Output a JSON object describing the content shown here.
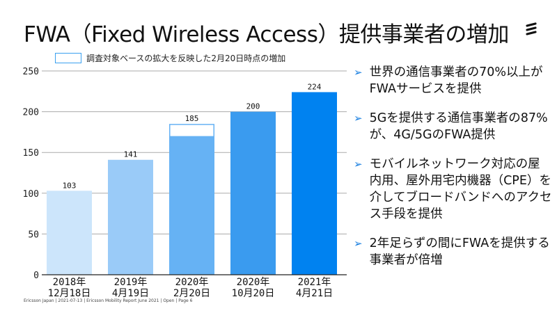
{
  "title": "FWA（Fixed Wireless Access）提供事業者の増加",
  "legend_label": "調査対象ベースの拡大を反映した2月20日時点の増加",
  "bullets": [
    "世界の通信事業者の70%以上がFWAサービスを提供",
    "5Gを提供する通信事業者の87%が、4G/5GのFWA提供",
    "モバイルネットワーク対応の屋内用、屋外用宅内機器（CPE）を介してブロードバンドへのアクセス手段を提供",
    "2年足らずの間にFWAを提供する事業者が倍増"
  ],
  "footer": "Ericsson Japan | 2021-07-13 | Ericsson Mobility Report June 2021 | Open | Page 6",
  "chart_data": {
    "type": "bar",
    "categories": [
      [
        "2018年",
        "12月18日"
      ],
      [
        "2019年",
        "4月19日"
      ],
      [
        "2020年",
        "2月20日"
      ],
      [
        "2020年",
        "10月20日"
      ],
      [
        "2021年",
        "4月21日"
      ]
    ],
    "values": [
      103,
      141,
      185,
      200,
      224
    ],
    "base_before_scope_expansion": [
      null,
      null,
      170,
      null,
      null
    ],
    "colors": [
      "#cce5fb",
      "#9acbf8",
      "#66b2f4",
      "#3a9bef",
      "#0082f0"
    ],
    "yticks": [
      0,
      50,
      100,
      150,
      200,
      250
    ],
    "ylim": [
      0,
      250
    ],
    "grid": true,
    "legend_position": "top"
  }
}
